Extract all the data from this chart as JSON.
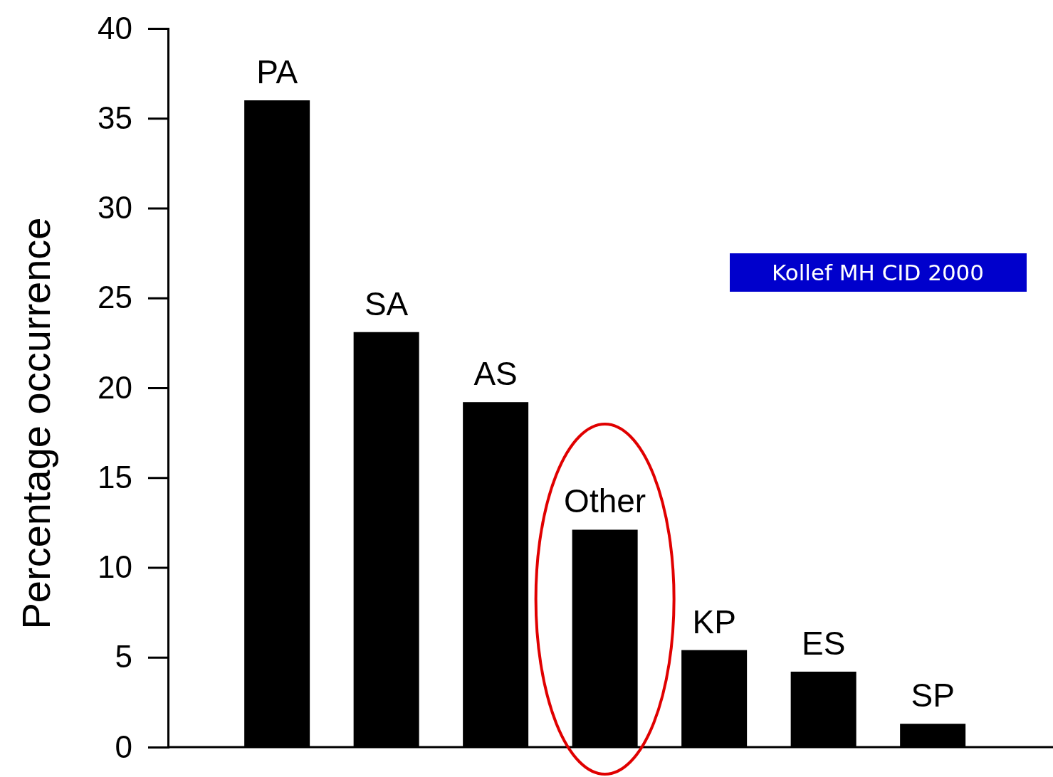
{
  "chart_data": {
    "type": "bar",
    "ylabel": "Percentage occurrence",
    "categories": [
      "PA",
      "SA",
      "AS",
      "Other",
      "KP",
      "ES",
      "SP"
    ],
    "values": [
      36,
      23.1,
      19.2,
      12.1,
      5.4,
      4.2,
      1.3
    ],
    "color": "#000000",
    "ylim": [
      0,
      40
    ],
    "yticks": [
      0,
      5,
      10,
      15,
      20,
      25,
      30,
      35,
      40
    ],
    "grid": false,
    "annotations": [
      "Kollef MH CID 2000"
    ]
  }
}
